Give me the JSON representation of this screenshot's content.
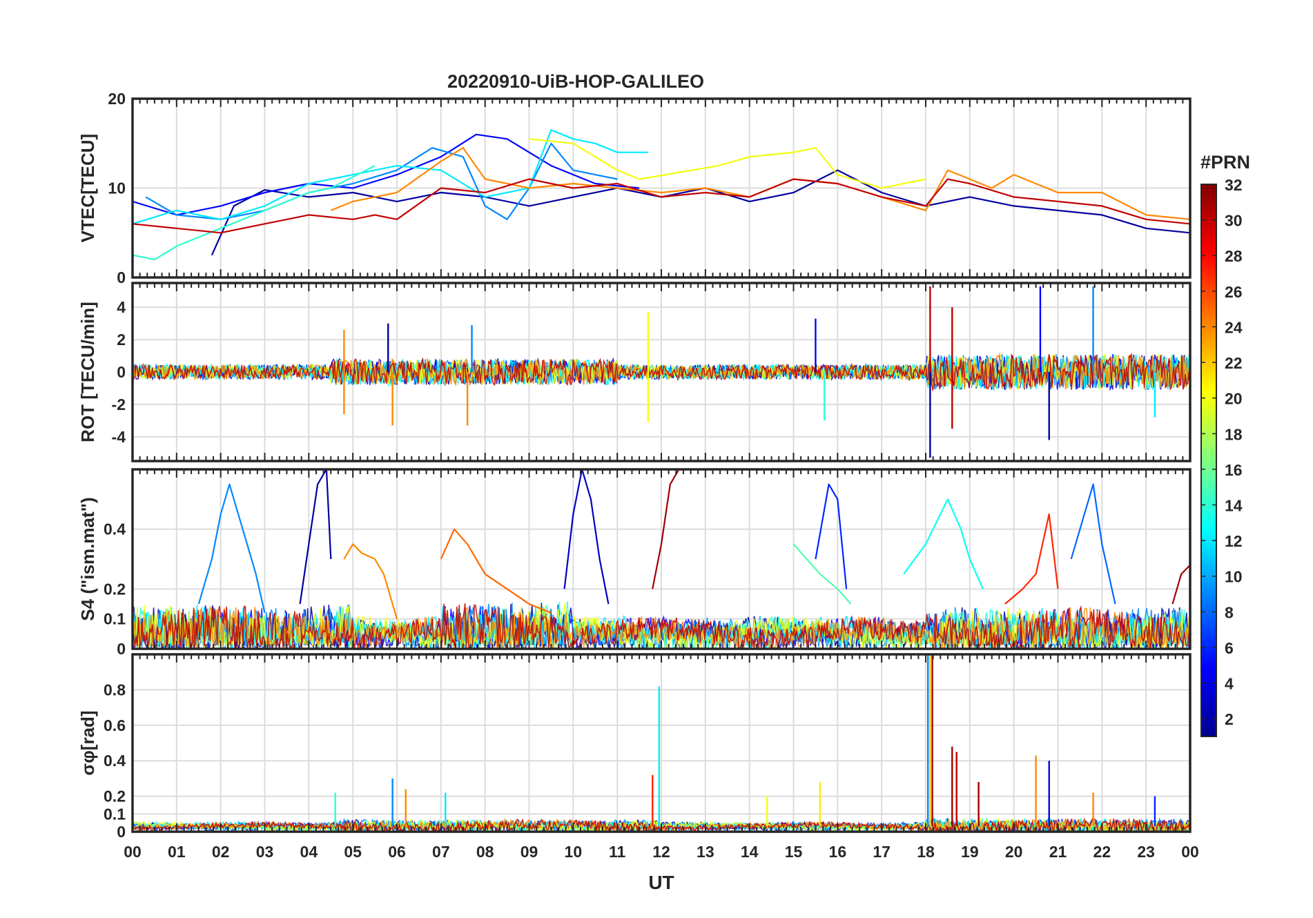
{
  "figure": {
    "title": "20220910-UiB-HOP-GALILEO",
    "xlabel": "UT",
    "x_ticks": [
      "00",
      "01",
      "02",
      "03",
      "04",
      "05",
      "06",
      "07",
      "08",
      "09",
      "10",
      "11",
      "12",
      "13",
      "14",
      "15",
      "16",
      "17",
      "18",
      "19",
      "20",
      "21",
      "22",
      "23",
      "00"
    ]
  },
  "colorbar": {
    "title": "#PRN",
    "range": [
      1,
      32
    ],
    "ticks": [
      "2",
      "4",
      "6",
      "8",
      "10",
      "12",
      "14",
      "16",
      "18",
      "20",
      "22",
      "24",
      "26",
      "28",
      "30",
      "32"
    ]
  },
  "chart_data": [
    {
      "type": "line",
      "panel": "vtec",
      "ylabel": "VTEC[TECU]",
      "ylim": [
        0,
        20
      ],
      "yticks": [
        "0",
        "10",
        "20"
      ],
      "xlim": [
        0,
        24
      ],
      "series": [
        {
          "name": "PRN 2",
          "prn": 2,
          "x": [
            1.8,
            2.3,
            3.0,
            4.0,
            5.0,
            6.0,
            7.0,
            8.0,
            9.0,
            10.0,
            11.0,
            12.0,
            13.0,
            14.0,
            15.0,
            16.0,
            17.0,
            18.0,
            19.0,
            20.0,
            21.0,
            22.0,
            23.0,
            24.0
          ],
          "y": [
            2.5,
            8.0,
            9.8,
            9.0,
            9.5,
            8.5,
            9.5,
            9.0,
            8.0,
            9.0,
            10.0,
            9.0,
            10.0,
            8.5,
            9.5,
            12.0,
            9.5,
            8.0,
            9.0,
            8.0,
            7.5,
            7.0,
            5.5,
            5.0
          ]
        },
        {
          "name": "PRN 5",
          "prn": 5,
          "x": [
            0.0,
            1.0,
            2.0,
            3.0,
            4.0,
            5.0,
            6.0,
            7.0,
            7.8,
            8.5,
            9.5,
            10.5,
            11.5
          ],
          "y": [
            8.5,
            7.0,
            8.0,
            9.5,
            10.5,
            10.0,
            11.5,
            13.5,
            16.0,
            15.5,
            12.5,
            10.5,
            10.0
          ]
        },
        {
          "name": "PRN 9",
          "prn": 9,
          "x": [
            0.3,
            1.0,
            2.0,
            3.0,
            4.0,
            5.0,
            6.0,
            6.8,
            7.5,
            8.0,
            8.5,
            9.0,
            9.5,
            10.0,
            11.0
          ],
          "y": [
            9.0,
            7.0,
            6.5,
            7.5,
            9.5,
            10.5,
            12.0,
            14.5,
            13.5,
            8.0,
            6.5,
            10.0,
            15.0,
            12.0,
            11.0
          ]
        },
        {
          "name": "PRN 12",
          "prn": 12,
          "x": [
            0.0,
            1.0,
            2.0,
            3.0,
            4.0,
            5.0,
            6.0,
            7.0,
            8.0,
            9.0,
            9.5,
            10.0,
            10.5,
            11.0,
            11.7
          ],
          "y": [
            6.0,
            7.5,
            6.5,
            8.0,
            10.5,
            11.5,
            12.5,
            12.0,
            9.0,
            10.0,
            16.5,
            15.5,
            15.0,
            14.0,
            14.0
          ]
        },
        {
          "name": "PRN 14",
          "prn": 14,
          "x": [
            0.0,
            0.5,
            1.0,
            1.5,
            2.0,
            3.0,
            4.0,
            4.5,
            5.5
          ],
          "y": [
            2.5,
            2.0,
            3.5,
            4.5,
            5.5,
            7.5,
            9.5,
            10.0,
            12.5
          ]
        },
        {
          "name": "PRN 20",
          "prn": 20,
          "x": [
            9.0,
            10.0,
            11.0,
            11.5,
            13.3,
            14.0,
            15.0,
            15.5,
            16.0,
            17.0,
            18.0
          ],
          "y": [
            15.5,
            15.0,
            12.0,
            11.0,
            12.5,
            13.5,
            14.0,
            14.5,
            11.5,
            10.0,
            11.0
          ]
        },
        {
          "name": "PRN 24",
          "prn": 24,
          "x": [
            4.5,
            5.0,
            6.0,
            7.0,
            7.5,
            8.0,
            9.0,
            10.0,
            11.0,
            12.0,
            13.0,
            14.0,
            15.0,
            16.0,
            17.0,
            18.0,
            18.5,
            19.0,
            19.5,
            20.0,
            21.0,
            22.0,
            23.0,
            24.0
          ],
          "y": [
            7.5,
            8.5,
            9.5,
            13.0,
            14.5,
            11.0,
            10.0,
            10.5,
            10.0,
            9.5,
            10.0,
            9.0,
            11.0,
            10.5,
            9.0,
            7.5,
            12.0,
            11.0,
            10.0,
            11.5,
            9.5,
            9.5,
            7.0,
            6.5
          ]
        },
        {
          "name": "PRN 30",
          "prn": 30,
          "x": [
            0.0,
            1.0,
            2.0,
            3.0,
            4.0,
            5.0,
            5.5,
            6.0,
            7.0,
            8.0,
            9.0,
            10.0,
            11.0,
            12.0,
            13.0,
            14.0,
            15.0,
            16.0,
            17.0,
            18.0,
            18.5,
            19.0,
            20.0,
            21.0,
            22.0,
            23.0,
            24.0
          ],
          "y": [
            6.0,
            5.5,
            5.0,
            6.0,
            7.0,
            6.5,
            7.0,
            6.5,
            10.0,
            9.5,
            11.0,
            10.0,
            10.5,
            9.0,
            9.5,
            9.0,
            11.0,
            10.5,
            9.0,
            8.0,
            11.0,
            10.5,
            9.0,
            8.5,
            8.0,
            6.5,
            6.0
          ]
        }
      ]
    },
    {
      "type": "line",
      "panel": "rot",
      "ylabel": "ROT [TECU/min]",
      "ylim": [
        -5.5,
        5.5
      ],
      "yticks": [
        "-4",
        "-2",
        "0",
        "2",
        "4"
      ],
      "xlim": [
        0,
        24
      ],
      "spikes": [
        {
          "x": 4.8,
          "y": 2.6,
          "prn": 24
        },
        {
          "x": 4.8,
          "y": -2.6,
          "prn": 24
        },
        {
          "x": 5.8,
          "y": 3.0,
          "prn": 2
        },
        {
          "x": 5.9,
          "y": -3.3,
          "prn": 24
        },
        {
          "x": 7.6,
          "y": -3.3,
          "prn": 24
        },
        {
          "x": 7.7,
          "y": 2.9,
          "prn": 9
        },
        {
          "x": 11.7,
          "y": 3.7,
          "prn": 20
        },
        {
          "x": 11.7,
          "y": -3.1,
          "prn": 20
        },
        {
          "x": 15.5,
          "y": 3.3,
          "prn": 5
        },
        {
          "x": 15.7,
          "y": -3.0,
          "prn": 14
        },
        {
          "x": 18.1,
          "y": 5.3,
          "prn": 30
        },
        {
          "x": 18.1,
          "y": -5.3,
          "prn": 2
        },
        {
          "x": 18.6,
          "y": 4.0,
          "prn": 30
        },
        {
          "x": 18.6,
          "y": -3.5,
          "prn": 30
        },
        {
          "x": 20.6,
          "y": 5.3,
          "prn": 5
        },
        {
          "x": 20.8,
          "y": -4.2,
          "prn": 2
        },
        {
          "x": 21.8,
          "y": 5.3,
          "prn": 9
        },
        {
          "x": 23.2,
          "y": -2.8,
          "prn": 12
        }
      ]
    },
    {
      "type": "line",
      "panel": "s4",
      "ylabel": "S4 (\"ism.mat\")",
      "ylim": [
        0,
        0.6
      ],
      "yticks": [
        "0",
        "0.1",
        "0.2",
        "0.4"
      ],
      "xlim": [
        0,
        24
      ],
      "series": [
        {
          "name": "PRN 9",
          "prn": 9,
          "x": [
            1.5,
            1.8,
            2.0,
            2.2,
            2.5,
            2.8,
            3.0
          ],
          "y": [
            0.15,
            0.3,
            0.45,
            0.55,
            0.4,
            0.25,
            0.12
          ]
        },
        {
          "name": "PRN 2",
          "prn": 2,
          "x": [
            3.8,
            4.0,
            4.2,
            4.4,
            4.5
          ],
          "y": [
            0.15,
            0.35,
            0.55,
            0.6,
            0.3
          ]
        },
        {
          "name": "PRN 24",
          "prn": 24,
          "x": [
            4.8,
            5.0,
            5.2,
            5.5,
            5.7,
            6.0
          ],
          "y": [
            0.3,
            0.35,
            0.32,
            0.3,
            0.25,
            0.1
          ]
        },
        {
          "name": "PRN 25",
          "prn": 25,
          "x": [
            7.0,
            7.3,
            7.6,
            8.0,
            8.5,
            9.0,
            9.5
          ],
          "y": [
            0.3,
            0.4,
            0.35,
            0.25,
            0.2,
            0.15,
            0.12
          ]
        },
        {
          "name": "PRN 3",
          "prn": 3,
          "x": [
            9.8,
            10.0,
            10.2,
            10.4,
            10.6,
            10.8
          ],
          "y": [
            0.2,
            0.45,
            0.6,
            0.5,
            0.3,
            0.15
          ]
        },
        {
          "name": "PRN 31",
          "prn": 31,
          "x": [
            11.8,
            12.0,
            12.2,
            12.4
          ],
          "y": [
            0.2,
            0.35,
            0.55,
            0.6
          ]
        },
        {
          "name": "PRN 15",
          "prn": 15,
          "x": [
            15.0,
            15.3,
            15.6,
            16.0,
            16.3
          ],
          "y": [
            0.35,
            0.3,
            0.25,
            0.2,
            0.15
          ]
        },
        {
          "name": "PRN 6",
          "prn": 6,
          "x": [
            15.5,
            15.8,
            16.0,
            16.2
          ],
          "y": [
            0.3,
            0.55,
            0.5,
            0.2
          ]
        },
        {
          "name": "PRN 13",
          "prn": 13,
          "x": [
            17.5,
            18.0,
            18.5,
            18.8,
            19.0,
            19.3
          ],
          "y": [
            0.25,
            0.35,
            0.5,
            0.4,
            0.3,
            0.2
          ]
        },
        {
          "name": "PRN 27",
          "prn": 27,
          "x": [
            19.8,
            20.2,
            20.5,
            20.8,
            21.0
          ],
          "y": [
            0.15,
            0.2,
            0.25,
            0.45,
            0.2
          ]
        },
        {
          "name": "PRN 8",
          "prn": 8,
          "x": [
            21.3,
            21.6,
            21.8,
            22.0,
            22.3
          ],
          "y": [
            0.3,
            0.45,
            0.55,
            0.35,
            0.15
          ]
        },
        {
          "name": "PRN 31",
          "prn": 31,
          "x": [
            23.6,
            23.8,
            24.0
          ],
          "y": [
            0.15,
            0.25,
            0.28
          ]
        }
      ]
    },
    {
      "type": "line",
      "panel": "sigma_phi",
      "ylabel": "σφ[rad]",
      "ylim": [
        0,
        1
      ],
      "yticks": [
        "0",
        "0.1",
        "0.2",
        "0.4",
        "0.6",
        "0.8"
      ],
      "xlim": [
        0,
        24
      ],
      "spikes": [
        {
          "x": 4.6,
          "y": 0.22,
          "prn": 14
        },
        {
          "x": 5.9,
          "y": 0.3,
          "prn": 9
        },
        {
          "x": 6.2,
          "y": 0.24,
          "prn": 24
        },
        {
          "x": 7.1,
          "y": 0.22,
          "prn": 12
        },
        {
          "x": 11.8,
          "y": 0.32,
          "prn": 27
        },
        {
          "x": 11.95,
          "y": 0.82,
          "prn": 12
        },
        {
          "x": 14.4,
          "y": 0.2,
          "prn": 20
        },
        {
          "x": 15.6,
          "y": 0.28,
          "prn": 21
        },
        {
          "x": 18.05,
          "y": 1.0,
          "prn": 9
        },
        {
          "x": 18.1,
          "y": 1.0,
          "prn": 22
        },
        {
          "x": 18.15,
          "y": 1.0,
          "prn": 31
        },
        {
          "x": 18.6,
          "y": 0.48,
          "prn": 31
        },
        {
          "x": 18.7,
          "y": 0.45,
          "prn": 30
        },
        {
          "x": 19.2,
          "y": 0.28,
          "prn": 31
        },
        {
          "x": 20.5,
          "y": 0.43,
          "prn": 24
        },
        {
          "x": 20.8,
          "y": 0.4,
          "prn": 4
        },
        {
          "x": 21.8,
          "y": 0.22,
          "prn": 24
        },
        {
          "x": 23.2,
          "y": 0.2,
          "prn": 6
        }
      ]
    }
  ]
}
